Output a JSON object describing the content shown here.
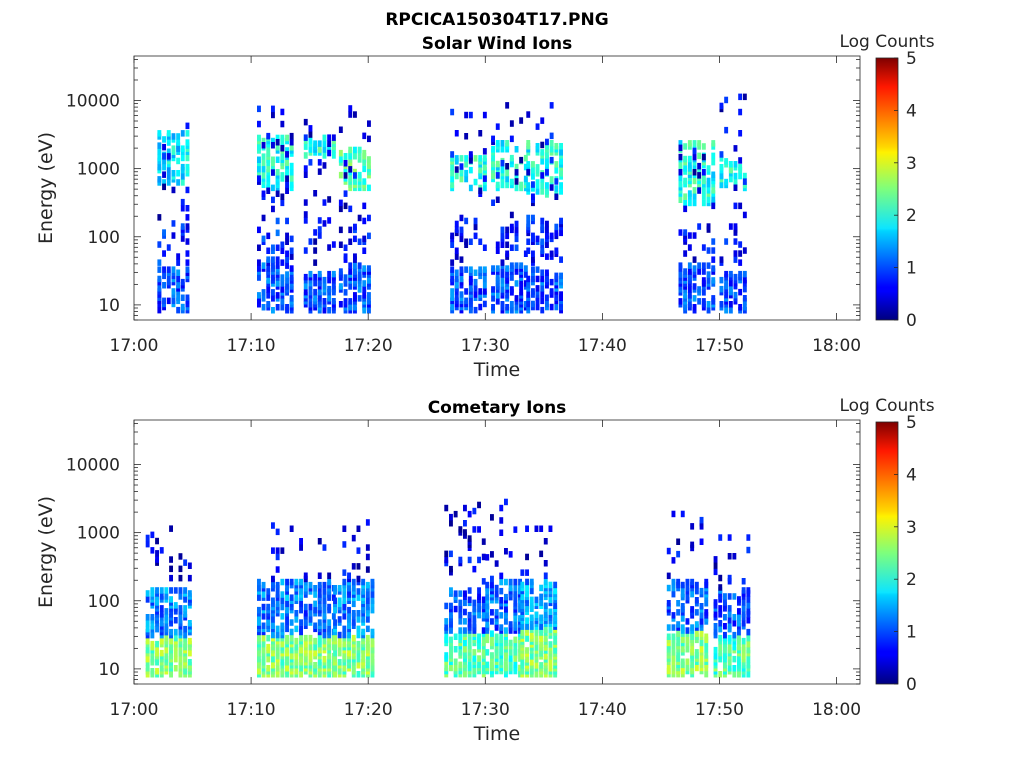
{
  "figure": {
    "title": "RPCICA150304T17.PNG"
  },
  "chart_data": [
    {
      "type": "heatmap",
      "title": "Solar Wind Ions",
      "xlabel": "Time",
      "ylabel": "Energy (eV)",
      "x_ticks": [
        "17:00",
        "17:10",
        "17:20",
        "17:30",
        "17:40",
        "17:50",
        "18:00"
      ],
      "xlim": [
        "17:00",
        "18:02"
      ],
      "y_scale": "log",
      "y_ticks": [
        "10",
        "100",
        "1000",
        "10000"
      ],
      "ylim": [
        6,
        45000
      ],
      "colorbar": {
        "label": "Log Counts",
        "ticks": [
          "0",
          "1",
          "2",
          "3",
          "4",
          "5"
        ],
        "range": [
          0,
          5
        ],
        "colormap": "jet"
      },
      "grid": false,
      "seed": 11,
      "bursts": [
        {
          "time": "17:02:00",
          "duration_min": 2.6,
          "bands": [
            {
              "lo": 600,
              "hi": 3500,
              "lvl": 0.35,
              "dens": 0.5
            },
            {
              "lo": 8,
              "hi": 35,
              "lvl": 0.2,
              "dens": 0.6
            },
            {
              "lo": 40,
              "hi": 150,
              "lvl": 0.15,
              "dens": 0.25
            },
            {
              "lo": 150,
              "hi": 5000,
              "lvl": 0.1,
              "dens": 0.08
            }
          ]
        },
        {
          "time": "17:10:30",
          "duration_min": 3.2,
          "bands": [
            {
              "lo": 500,
              "hi": 3000,
              "lvl": 0.4,
              "dens": 0.55
            },
            {
              "lo": 8,
              "hi": 40,
              "lvl": 0.2,
              "dens": 0.5
            },
            {
              "lo": 40,
              "hi": 200,
              "lvl": 0.15,
              "dens": 0.2
            },
            {
              "lo": 200,
              "hi": 8000,
              "lvl": 0.1,
              "dens": 0.07
            }
          ]
        },
        {
          "time": "17:14:30",
          "duration_min": 2.8,
          "bands": [
            {
              "lo": 8,
              "hi": 30,
              "lvl": 0.2,
              "dens": 0.7
            },
            {
              "lo": 1500,
              "hi": 3000,
              "lvl": 0.4,
              "dens": 0.5
            },
            {
              "lo": 40,
              "hi": 250,
              "lvl": 0.12,
              "dens": 0.15
            },
            {
              "lo": 200,
              "hi": 7000,
              "lvl": 0.1,
              "dens": 0.06
            }
          ]
        },
        {
          "time": "17:17:30",
          "duration_min": 2.6,
          "bands": [
            {
              "lo": 500,
              "hi": 2000,
              "lvl": 0.45,
              "dens": 0.6
            },
            {
              "lo": 8,
              "hi": 40,
              "lvl": 0.2,
              "dens": 0.6
            },
            {
              "lo": 40,
              "hi": 200,
              "lvl": 0.12,
              "dens": 0.2
            },
            {
              "lo": 200,
              "hi": 9000,
              "lvl": 0.1,
              "dens": 0.06
            }
          ]
        },
        {
          "time": "17:27:00",
          "duration_min": 3.0,
          "bands": [
            {
              "lo": 500,
              "hi": 1500,
              "lvl": 0.4,
              "dens": 0.5
            },
            {
              "lo": 8,
              "hi": 35,
              "lvl": 0.2,
              "dens": 0.5
            },
            {
              "lo": 40,
              "hi": 200,
              "lvl": 0.12,
              "dens": 0.15
            },
            {
              "lo": 200,
              "hi": 12000,
              "lvl": 0.1,
              "dens": 0.05
            }
          ]
        },
        {
          "time": "17:30:30",
          "duration_min": 3.0,
          "bands": [
            {
              "lo": 500,
              "hi": 2500,
              "lvl": 0.4,
              "dens": 0.45
            },
            {
              "lo": 8,
              "hi": 40,
              "lvl": 0.2,
              "dens": 0.6
            },
            {
              "lo": 40,
              "hi": 200,
              "lvl": 0.12,
              "dens": 0.2
            },
            {
              "lo": 200,
              "hi": 10000,
              "lvl": 0.1,
              "dens": 0.06
            }
          ]
        },
        {
          "time": "17:33:30",
          "duration_min": 3.0,
          "bands": [
            {
              "lo": 400,
              "hi": 2500,
              "lvl": 0.4,
              "dens": 0.5
            },
            {
              "lo": 8,
              "hi": 35,
              "lvl": 0.2,
              "dens": 0.55
            },
            {
              "lo": 40,
              "hi": 200,
              "lvl": 0.15,
              "dens": 0.3
            },
            {
              "lo": 200,
              "hi": 9000,
              "lvl": 0.1,
              "dens": 0.06
            }
          ]
        },
        {
          "time": "17:46:30",
          "duration_min": 3.0,
          "bands": [
            {
              "lo": 300,
              "hi": 2500,
              "lvl": 0.4,
              "dens": 0.5
            },
            {
              "lo": 8,
              "hi": 40,
              "lvl": 0.2,
              "dens": 0.6
            },
            {
              "lo": 40,
              "hi": 150,
              "lvl": 0.12,
              "dens": 0.2
            },
            {
              "lo": 200,
              "hi": 6000,
              "lvl": 0.1,
              "dens": 0.06
            }
          ]
        },
        {
          "time": "17:50:00",
          "duration_min": 2.5,
          "bands": [
            {
              "lo": 500,
              "hi": 1500,
              "lvl": 0.4,
              "dens": 0.4
            },
            {
              "lo": 8,
              "hi": 30,
              "lvl": 0.2,
              "dens": 0.55
            },
            {
              "lo": 40,
              "hi": 150,
              "lvl": 0.12,
              "dens": 0.15
            },
            {
              "lo": 200,
              "hi": 12000,
              "lvl": 0.1,
              "dens": 0.06
            }
          ]
        }
      ]
    },
    {
      "type": "heatmap",
      "title": "Cometary Ions",
      "xlabel": "Time",
      "ylabel": "Energy (eV)",
      "x_ticks": [
        "17:00",
        "17:10",
        "17:20",
        "17:30",
        "17:40",
        "17:50",
        "18:00"
      ],
      "xlim": [
        "17:00",
        "18:02"
      ],
      "y_scale": "log",
      "y_ticks": [
        "10",
        "100",
        "1000",
        "10000"
      ],
      "ylim": [
        6,
        45000
      ],
      "colorbar": {
        "label": "Log Counts",
        "ticks": [
          "0",
          "1",
          "2",
          "3",
          "4",
          "5"
        ],
        "range": [
          0,
          5
        ],
        "colormap": "jet"
      },
      "grid": false,
      "seed": 29,
      "bursts": [
        {
          "time": "17:01:00",
          "duration_min": 3.8,
          "bands": [
            {
              "lo": 8,
              "hi": 30,
              "lvl": 0.5,
              "dens": 0.75
            },
            {
              "lo": 30,
              "hi": 150,
              "lvl": 0.25,
              "dens": 0.6
            },
            {
              "lo": 150,
              "hi": 1500,
              "lvl": 0.1,
              "dens": 0.08
            }
          ]
        },
        {
          "time": "17:10:30",
          "duration_min": 4.0,
          "bands": [
            {
              "lo": 8,
              "hi": 30,
              "lvl": 0.5,
              "dens": 0.8
            },
            {
              "lo": 30,
              "hi": 200,
              "lvl": 0.25,
              "dens": 0.6
            },
            {
              "lo": 200,
              "hi": 1500,
              "lvl": 0.1,
              "dens": 0.08
            }
          ]
        },
        {
          "time": "17:14:30",
          "duration_min": 2.8,
          "bands": [
            {
              "lo": 8,
              "hi": 30,
              "lvl": 0.5,
              "dens": 0.75
            },
            {
              "lo": 30,
              "hi": 200,
              "lvl": 0.22,
              "dens": 0.5
            },
            {
              "lo": 200,
              "hi": 1500,
              "lvl": 0.1,
              "dens": 0.08
            }
          ]
        },
        {
          "time": "17:17:00",
          "duration_min": 3.4,
          "bands": [
            {
              "lo": 8,
              "hi": 30,
              "lvl": 0.5,
              "dens": 0.8
            },
            {
              "lo": 30,
              "hi": 200,
              "lvl": 0.25,
              "dens": 0.6
            },
            {
              "lo": 200,
              "hi": 1500,
              "lvl": 0.1,
              "dens": 0.08
            }
          ]
        },
        {
          "time": "17:26:30",
          "duration_min": 3.5,
          "bands": [
            {
              "lo": 8,
              "hi": 35,
              "lvl": 0.45,
              "dens": 0.7
            },
            {
              "lo": 35,
              "hi": 150,
              "lvl": 0.2,
              "dens": 0.4
            },
            {
              "lo": 150,
              "hi": 3000,
              "lvl": 0.1,
              "dens": 0.08
            }
          ]
        },
        {
          "time": "17:30:00",
          "duration_min": 3.0,
          "bands": [
            {
              "lo": 8,
              "hi": 35,
              "lvl": 0.45,
              "dens": 0.75
            },
            {
              "lo": 35,
              "hi": 200,
              "lvl": 0.22,
              "dens": 0.55
            },
            {
              "lo": 200,
              "hi": 3000,
              "lvl": 0.1,
              "dens": 0.08
            }
          ]
        },
        {
          "time": "17:33:00",
          "duration_min": 3.0,
          "bands": [
            {
              "lo": 8,
              "hi": 40,
              "lvl": 0.5,
              "dens": 0.8
            },
            {
              "lo": 40,
              "hi": 200,
              "lvl": 0.28,
              "dens": 0.6
            },
            {
              "lo": 200,
              "hi": 1500,
              "lvl": 0.1,
              "dens": 0.08
            }
          ]
        },
        {
          "time": "17:45:30",
          "duration_min": 3.5,
          "bands": [
            {
              "lo": 8,
              "hi": 35,
              "lvl": 0.5,
              "dens": 0.75
            },
            {
              "lo": 35,
              "hi": 200,
              "lvl": 0.22,
              "dens": 0.55
            },
            {
              "lo": 200,
              "hi": 2000,
              "lvl": 0.1,
              "dens": 0.08
            }
          ]
        },
        {
          "time": "17:49:30",
          "duration_min": 3.0,
          "bands": [
            {
              "lo": 8,
              "hi": 30,
              "lvl": 0.45,
              "dens": 0.7
            },
            {
              "lo": 30,
              "hi": 150,
              "lvl": 0.2,
              "dens": 0.5
            },
            {
              "lo": 150,
              "hi": 1000,
              "lvl": 0.1,
              "dens": 0.08
            }
          ]
        }
      ]
    }
  ]
}
